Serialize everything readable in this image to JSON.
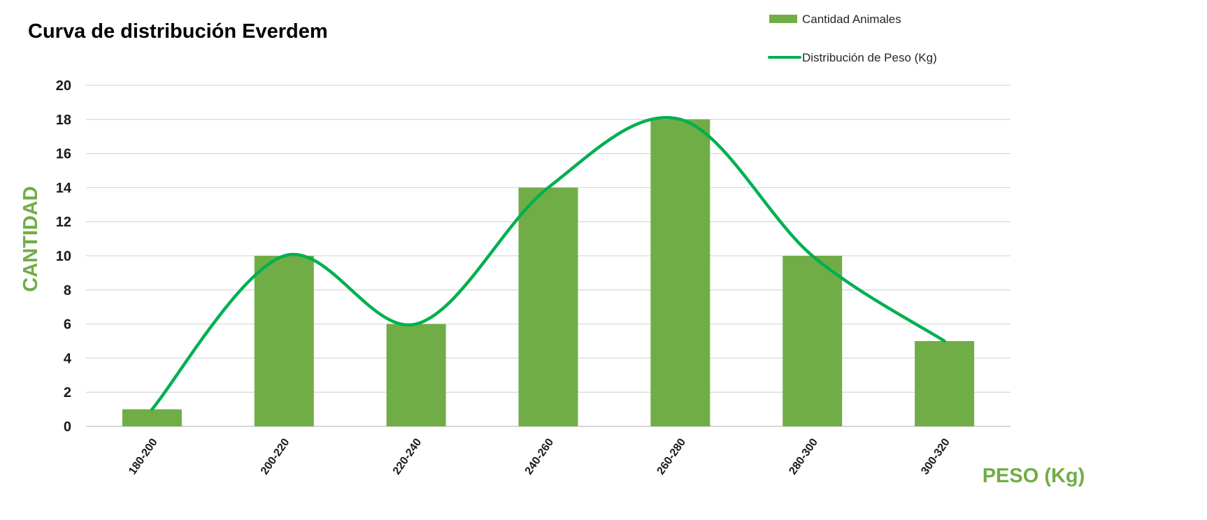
{
  "chart_data": {
    "type": "bar",
    "title": "Curva de distribución Everdem",
    "xlabel": "PESO (Kg)",
    "ylabel": "CANTIDAD",
    "categories": [
      "180-200",
      "200-220",
      "220-240",
      "240-260",
      "260-280",
      "280-300",
      "300-320"
    ],
    "series": [
      {
        "name": "Cantidad Animales",
        "kind": "bar",
        "color": "#70AD47",
        "values": [
          1,
          10,
          6,
          14,
          18,
          10,
          5
        ]
      },
      {
        "name": "Distribución de Peso (Kg)",
        "kind": "smooth-line",
        "color": "#00B050",
        "values": [
          1,
          10,
          6,
          14,
          18,
          10,
          5
        ]
      }
    ],
    "ylim": [
      0,
      20
    ],
    "yticks": [
      "0",
      "2",
      "4",
      "6",
      "8",
      "10",
      "12",
      "14",
      "16",
      "18",
      "20"
    ],
    "grid": true,
    "legend_position": "top-right",
    "axis_label_color": "#70AD47",
    "gridline_color": "#D9D9D9"
  }
}
